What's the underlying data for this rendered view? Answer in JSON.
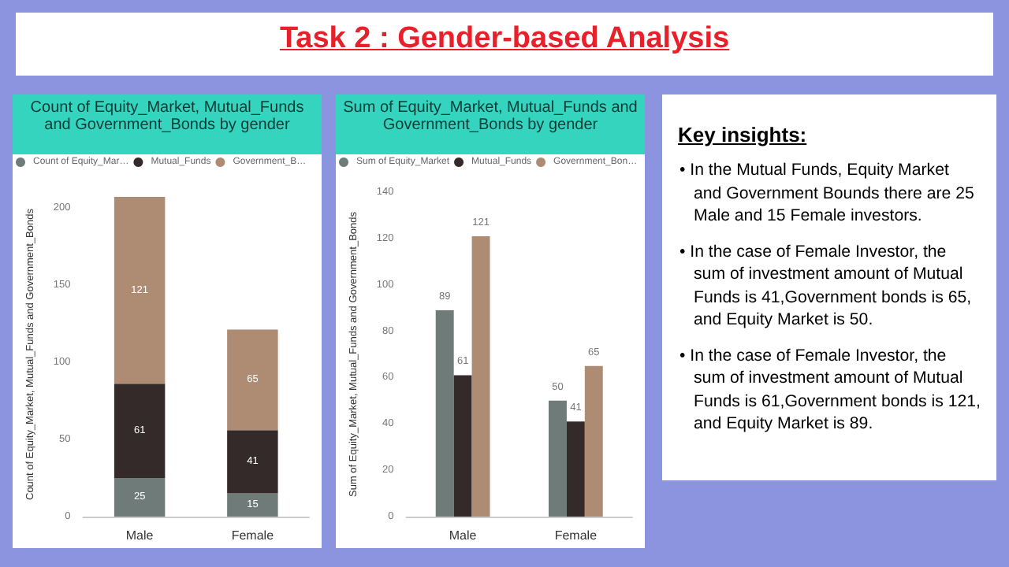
{
  "chart_data": [
    {
      "type": "other",
      "title": "Task 2 : Gender-based Analysis"
    },
    {
      "type": "bar",
      "title": "Count of Equity_Market, Mutual_Funds and Government_Bonds by gender",
      "ylabel": "Count of Equity_Market, Mutual_Funds and Government_Bonds",
      "categories": [
        "Male",
        "Female"
      ],
      "stacked": true,
      "data_labels": true,
      "legend": "top left",
      "grid": false,
      "ylim": [
        0,
        210
      ],
      "yticks": [
        0,
        50,
        100,
        150,
        200
      ],
      "series": [
        {
          "name": "Count of Equity_Mar…",
          "color": "#6e7b78",
          "values": [
            25,
            15
          ]
        },
        {
          "name": "Mutual_Funds",
          "color": "#352a2a",
          "values": [
            61,
            41
          ]
        },
        {
          "name": "Government_B…",
          "color": "#ad8c73",
          "values": [
            121,
            65
          ]
        }
      ]
    },
    {
      "type": "bar",
      "title": "Sum of Equity_Market, Mutual_Funds and Government_Bonds by gender",
      "ylabel": "Sum of Equity_Market, Mutual_Funds and Government_Bonds",
      "categories": [
        "Male",
        "Female"
      ],
      "data_labels": true,
      "legend": "top left",
      "grid": false,
      "ylim": [
        0,
        140
      ],
      "yticks": [
        0,
        20,
        40,
        60,
        80,
        100,
        120,
        140
      ],
      "series": [
        {
          "name": "Sum of Equity_Market",
          "color": "#6e7b78",
          "values": [
            89,
            50
          ]
        },
        {
          "name": "Mutual_Funds",
          "color": "#352a2a",
          "values": [
            61,
            41
          ]
        },
        {
          "name": "Government_Bon…",
          "color": "#ad8c73",
          "values": [
            121,
            65
          ]
        }
      ]
    },
    {
      "type": "other",
      "title": "Key insights:",
      "annotations": [
        "•  In the Mutual Funds, Equity Market and Government Bounds there are 25 Male and 15 Female investors.",
        "• In the case of Female Investor, the sum of investment amount of Mutual Funds is 41,Government bonds is 65, and Equity Market is 50.",
        "• In the case of Female Investor, the sum of investment amount of Mutual Funds is 61,Government bonds is 121, and Equity Market is 89."
      ]
    }
  ]
}
